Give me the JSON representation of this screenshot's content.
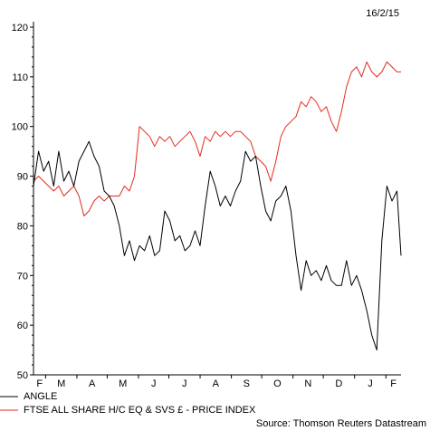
{
  "date": "16/2/15",
  "source": "Source: Thomson Reuters Datastream",
  "chart_data": {
    "type": "line",
    "ylim": [
      50,
      120
    ],
    "yticks": [
      50,
      60,
      70,
      80,
      90,
      100,
      110,
      120
    ],
    "month_labels": [
      "F",
      "M",
      "A",
      "M",
      "J",
      "J",
      "A",
      "S",
      "O",
      "N",
      "D",
      "J",
      "F"
    ],
    "grid": false,
    "legend_position": "bottom-left",
    "x_range": [
      "2014-02-17",
      "2015-02-16"
    ],
    "series": [
      {
        "name": "ANGLE",
        "color": "#000000",
        "points": [
          [
            "2014-02-17",
            88
          ],
          [
            "2014-02-22",
            95
          ],
          [
            "2014-02-27",
            91
          ],
          [
            "2014-03-04",
            93
          ],
          [
            "2014-03-09",
            88
          ],
          [
            "2014-03-14",
            95
          ],
          [
            "2014-03-19",
            89
          ],
          [
            "2014-03-24",
            91
          ],
          [
            "2014-03-29",
            88
          ],
          [
            "2014-04-03",
            93
          ],
          [
            "2014-04-08",
            95
          ],
          [
            "2014-04-13",
            97
          ],
          [
            "2014-04-18",
            94
          ],
          [
            "2014-04-23",
            92
          ],
          [
            "2014-04-28",
            87
          ],
          [
            "2014-05-03",
            86
          ],
          [
            "2014-05-08",
            84
          ],
          [
            "2014-05-13",
            80
          ],
          [
            "2014-05-18",
            74
          ],
          [
            "2014-05-23",
            77
          ],
          [
            "2014-05-28",
            73
          ],
          [
            "2014-06-02",
            76
          ],
          [
            "2014-06-07",
            75
          ],
          [
            "2014-06-12",
            78
          ],
          [
            "2014-06-17",
            74
          ],
          [
            "2014-06-22",
            75
          ],
          [
            "2014-06-27",
            83
          ],
          [
            "2014-07-02",
            81
          ],
          [
            "2014-07-07",
            77
          ],
          [
            "2014-07-12",
            78
          ],
          [
            "2014-07-17",
            75
          ],
          [
            "2014-07-22",
            76
          ],
          [
            "2014-07-27",
            79
          ],
          [
            "2014-08-01",
            76
          ],
          [
            "2014-08-06",
            84
          ],
          [
            "2014-08-11",
            91
          ],
          [
            "2014-08-16",
            88
          ],
          [
            "2014-08-21",
            84
          ],
          [
            "2014-08-26",
            86
          ],
          [
            "2014-08-31",
            84
          ],
          [
            "2014-09-05",
            87
          ],
          [
            "2014-09-10",
            89
          ],
          [
            "2014-09-15",
            95
          ],
          [
            "2014-09-20",
            93
          ],
          [
            "2014-09-25",
            94
          ],
          [
            "2014-09-30",
            88
          ],
          [
            "2014-10-05",
            83
          ],
          [
            "2014-10-10",
            81
          ],
          [
            "2014-10-15",
            85
          ],
          [
            "2014-10-20",
            86
          ],
          [
            "2014-10-25",
            88
          ],
          [
            "2014-10-30",
            83
          ],
          [
            "2014-11-04",
            74
          ],
          [
            "2014-11-09",
            67
          ],
          [
            "2014-11-14",
            73
          ],
          [
            "2014-11-19",
            70
          ],
          [
            "2014-11-24",
            71
          ],
          [
            "2014-11-29",
            69
          ],
          [
            "2014-12-04",
            72
          ],
          [
            "2014-12-09",
            69
          ],
          [
            "2014-12-14",
            68
          ],
          [
            "2014-12-19",
            68
          ],
          [
            "2014-12-24",
            73
          ],
          [
            "2014-12-29",
            68
          ],
          [
            "2015-01-03",
            70
          ],
          [
            "2015-01-08",
            67
          ],
          [
            "2015-01-13",
            63
          ],
          [
            "2015-01-18",
            58
          ],
          [
            "2015-01-23",
            55
          ],
          [
            "2015-01-28",
            77
          ],
          [
            "2015-02-02",
            88
          ],
          [
            "2015-02-07",
            85
          ],
          [
            "2015-02-12",
            87
          ],
          [
            "2015-02-16",
            74
          ]
        ]
      },
      {
        "name": "FTSE ALL SHARE H/C EQ & SVS £ - PRICE INDEX",
        "color": "#e32b1d",
        "points": [
          [
            "2014-02-17",
            89
          ],
          [
            "2014-02-22",
            90
          ],
          [
            "2014-02-27",
            89
          ],
          [
            "2014-03-04",
            88
          ],
          [
            "2014-03-09",
            87
          ],
          [
            "2014-03-14",
            88
          ],
          [
            "2014-03-19",
            86
          ],
          [
            "2014-03-24",
            87
          ],
          [
            "2014-03-29",
            88
          ],
          [
            "2014-04-03",
            86
          ],
          [
            "2014-04-08",
            82
          ],
          [
            "2014-04-13",
            83
          ],
          [
            "2014-04-18",
            85
          ],
          [
            "2014-04-23",
            86
          ],
          [
            "2014-04-28",
            85
          ],
          [
            "2014-05-03",
            86
          ],
          [
            "2014-05-08",
            86
          ],
          [
            "2014-05-13",
            86
          ],
          [
            "2014-05-18",
            88
          ],
          [
            "2014-05-23",
            87
          ],
          [
            "2014-05-28",
            90
          ],
          [
            "2014-06-02",
            100
          ],
          [
            "2014-06-07",
            99
          ],
          [
            "2014-06-12",
            98
          ],
          [
            "2014-06-17",
            96
          ],
          [
            "2014-06-22",
            98
          ],
          [
            "2014-06-27",
            97
          ],
          [
            "2014-07-02",
            98
          ],
          [
            "2014-07-07",
            96
          ],
          [
            "2014-07-12",
            97
          ],
          [
            "2014-07-17",
            98
          ],
          [
            "2014-07-22",
            99
          ],
          [
            "2014-07-27",
            97
          ],
          [
            "2014-08-01",
            94
          ],
          [
            "2014-08-06",
            98
          ],
          [
            "2014-08-11",
            97
          ],
          [
            "2014-08-16",
            99
          ],
          [
            "2014-08-21",
            98
          ],
          [
            "2014-08-26",
            99
          ],
          [
            "2014-08-31",
            98
          ],
          [
            "2014-09-05",
            99
          ],
          [
            "2014-09-10",
            99
          ],
          [
            "2014-09-15",
            98
          ],
          [
            "2014-09-20",
            97
          ],
          [
            "2014-09-25",
            94
          ],
          [
            "2014-09-30",
            93
          ],
          [
            "2014-10-05",
            92
          ],
          [
            "2014-10-10",
            89
          ],
          [
            "2014-10-15",
            93
          ],
          [
            "2014-10-20",
            98
          ],
          [
            "2014-10-25",
            100
          ],
          [
            "2014-10-30",
            101
          ],
          [
            "2014-11-04",
            102
          ],
          [
            "2014-11-09",
            105
          ],
          [
            "2014-11-14",
            104
          ],
          [
            "2014-11-19",
            106
          ],
          [
            "2014-11-24",
            105
          ],
          [
            "2014-11-29",
            103
          ],
          [
            "2014-12-04",
            104
          ],
          [
            "2014-12-09",
            101
          ],
          [
            "2014-12-14",
            99
          ],
          [
            "2014-12-19",
            103
          ],
          [
            "2014-12-24",
            108
          ],
          [
            "2014-12-29",
            111
          ],
          [
            "2015-01-03",
            112
          ],
          [
            "2015-01-08",
            110
          ],
          [
            "2015-01-13",
            113
          ],
          [
            "2015-01-18",
            111
          ],
          [
            "2015-01-23",
            110
          ],
          [
            "2015-01-28",
            111
          ],
          [
            "2015-02-02",
            113
          ],
          [
            "2015-02-07",
            112
          ],
          [
            "2015-02-12",
            111
          ],
          [
            "2015-02-16",
            111
          ]
        ]
      }
    ]
  }
}
